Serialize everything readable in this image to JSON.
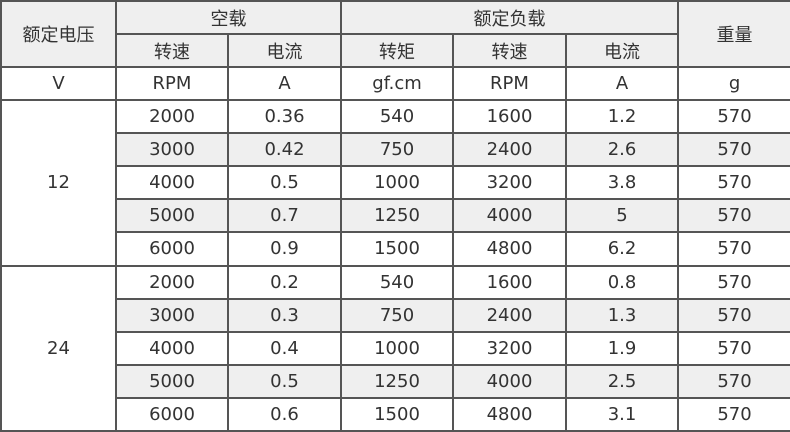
{
  "headers": {
    "rated_voltage": "额定电压",
    "no_load": "空载",
    "rated_load": "额定负载",
    "weight": "重量",
    "speed": "转速",
    "current": "电流",
    "torque": "转矩"
  },
  "units": [
    "V",
    "RPM",
    "A",
    "gf.cm",
    "RPM",
    "A",
    "g"
  ],
  "groups": [
    {
      "voltage": "12",
      "rows": [
        [
          "2000",
          "0.36",
          "540",
          "1600",
          "1.2",
          "570"
        ],
        [
          "3000",
          "0.42",
          "750",
          "2400",
          "2.6",
          "570"
        ],
        [
          "4000",
          "0.5",
          "1000",
          "3200",
          "3.8",
          "570"
        ],
        [
          "5000",
          "0.7",
          "1250",
          "4000",
          "5",
          "570"
        ],
        [
          "6000",
          "0.9",
          "1500",
          "4800",
          "6.2",
          "570"
        ]
      ]
    },
    {
      "voltage": "24",
      "rows": [
        [
          "2000",
          "0.2",
          "540",
          "1600",
          "0.8",
          "570"
        ],
        [
          "3000",
          "0.3",
          "750",
          "2400",
          "1.3",
          "570"
        ],
        [
          "4000",
          "0.4",
          "1000",
          "3200",
          "1.9",
          "570"
        ],
        [
          "5000",
          "0.5",
          "1250",
          "4000",
          "2.5",
          "570"
        ],
        [
          "6000",
          "0.6",
          "1500",
          "4800",
          "3.1",
          "570"
        ]
      ]
    }
  ]
}
